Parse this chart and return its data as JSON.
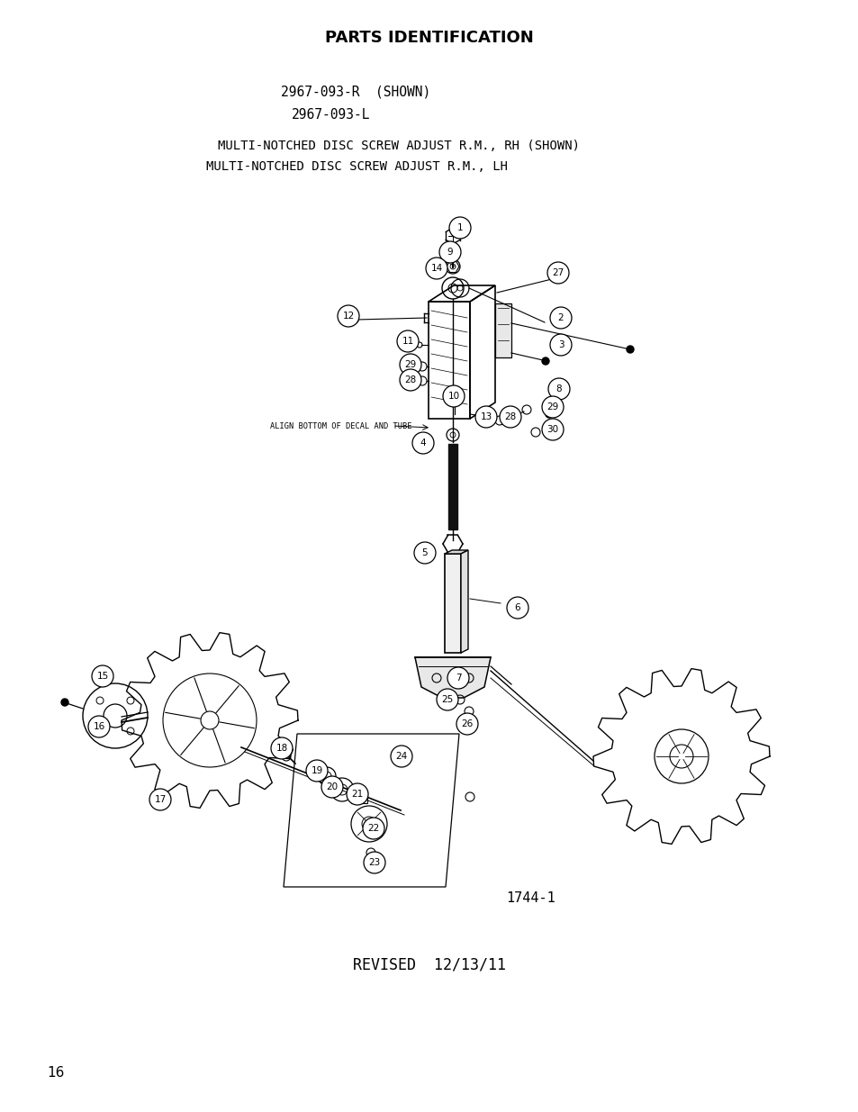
{
  "title": "PARTS IDENTIFICATION",
  "part_numbers_line1": "2967-093-R  (SHOWN)",
  "part_numbers_line2": "2967-093-L",
  "desc_line1": "MULTI-NOTCHED DISC SCREW ADJUST R.M., RH (SHOWN)",
  "desc_line2": "MULTI-NOTCHED DISC SCREW ADJUST R.M., LH",
  "diagram_id": "1744-1",
  "revised": "REVISED  12/13/11",
  "page_number": "16",
  "bg_color": "#ffffff",
  "dc": "#000000",
  "align_note": "ALIGN BOTTOM OF DECAL AND TUBE"
}
